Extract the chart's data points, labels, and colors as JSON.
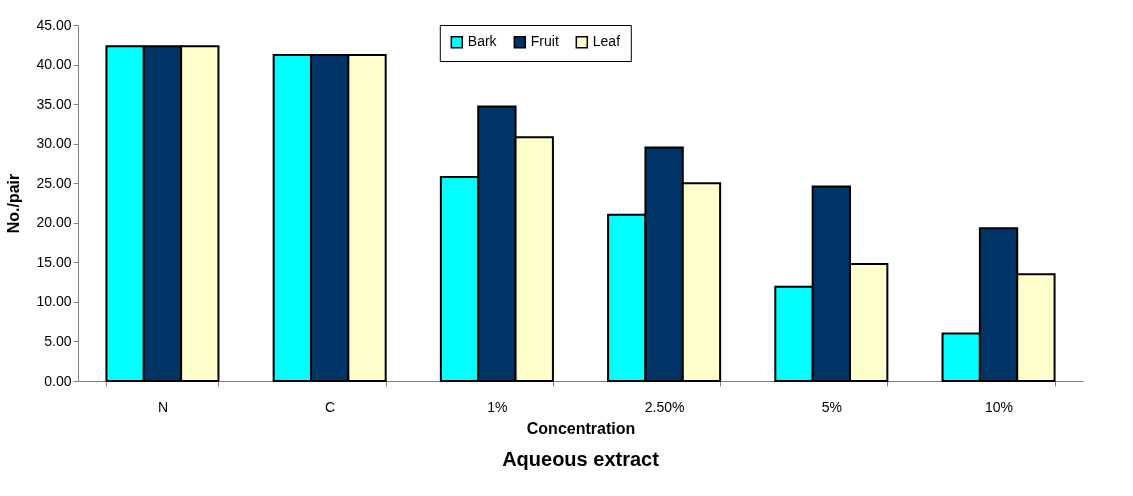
{
  "chart_data": {
    "type": "bar",
    "title": "Aqueous extract",
    "xlabel": "Concentration",
    "ylabel": "No./pair",
    "categories": [
      "N",
      "C",
      "1%",
      "2.50%",
      "5%",
      "10%"
    ],
    "series": [
      {
        "name": "Bark",
        "color": "#00ffff",
        "values": [
          42.3,
          41.2,
          25.8,
          21.0,
          11.9,
          6.0
        ]
      },
      {
        "name": "Fruit",
        "color": "#003366",
        "values": [
          42.3,
          41.2,
          34.7,
          29.5,
          24.6,
          19.3
        ]
      },
      {
        "name": "Leaf",
        "color": "#ffffcc",
        "values": [
          42.3,
          41.2,
          30.8,
          25.0,
          14.8,
          13.5
        ]
      }
    ],
    "ylim": [
      0,
      45
    ],
    "yticks": [
      {
        "value": 0,
        "label": "0.00"
      },
      {
        "value": 5,
        "label": "5.00"
      },
      {
        "value": 10,
        "label": "10.00"
      },
      {
        "value": 15,
        "label": "15.00"
      },
      {
        "value": 20,
        "label": "20.00"
      },
      {
        "value": 25,
        "label": "25.00"
      },
      {
        "value": 30,
        "label": "30.00"
      },
      {
        "value": 35,
        "label": "35.00"
      },
      {
        "value": 40,
        "label": "40.00"
      },
      {
        "value": 45,
        "label": "45.00"
      }
    ],
    "grid": false,
    "legend": "top"
  }
}
